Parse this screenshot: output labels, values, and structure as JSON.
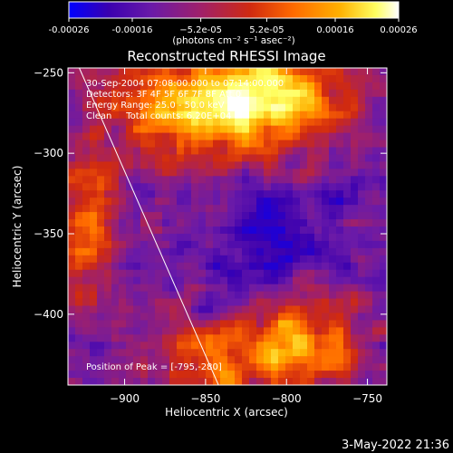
{
  "chart_data": {
    "type": "heatmap",
    "title": "Reconstructed RHESSI Image",
    "xlabel": "Heliocentric X (arcsec)",
    "ylabel": "Heliocentric Y (arcsec)",
    "xlim": [
      -935,
      -738
    ],
    "ylim": [
      -444,
      -247
    ],
    "x_ticks": [
      -900,
      -850,
      -800,
      -750
    ],
    "y_ticks": [
      -250,
      -300,
      -350,
      -400
    ],
    "x_tick_labels": [
      "−900",
      "−850",
      "−800",
      "−750"
    ],
    "y_tick_labels": [
      "−250",
      "−300",
      "−350",
      "−400"
    ],
    "colorbar": {
      "range": [
        -0.00026,
        0.00026
      ],
      "ticks": [
        -0.00026,
        -0.00016,
        -5.2e-05,
        5.2e-05,
        0.00016,
        0.00026
      ],
      "tick_labels": [
        "-0.00026",
        "-0.00016",
        "−5.2e-05",
        "5.2e-05",
        "0.00016",
        "0.00026"
      ],
      "units_label": "(photons cm⁻² s⁻¹ asec⁻²)",
      "colormap": [
        "#0000ff",
        "#3a00b0",
        "#6a1aa8",
        "#a0206a",
        "#d02a10",
        "#ff6a00",
        "#ffb000",
        "#ffff60",
        "#ffffff"
      ]
    },
    "annotations": [
      "30-Sep-2004 07:08:00.000 to 07:14:00.000",
      "Detectors: 3F 4F 5F 6F 7F 8F  Att 0",
      "Energy Range: 25.0 - 50.0 keV",
      "Clean     Total counts: 6.20E+04"
    ],
    "peak_label": "Position of Peak = [-795,-280]",
    "peak": [
      -795,
      -280
    ],
    "limb_line": [
      [
        -928,
        -247
      ],
      [
        -842,
        -444
      ]
    ],
    "grid": false
  },
  "footer": {
    "timestamp": "3-May-2022 21:36"
  }
}
